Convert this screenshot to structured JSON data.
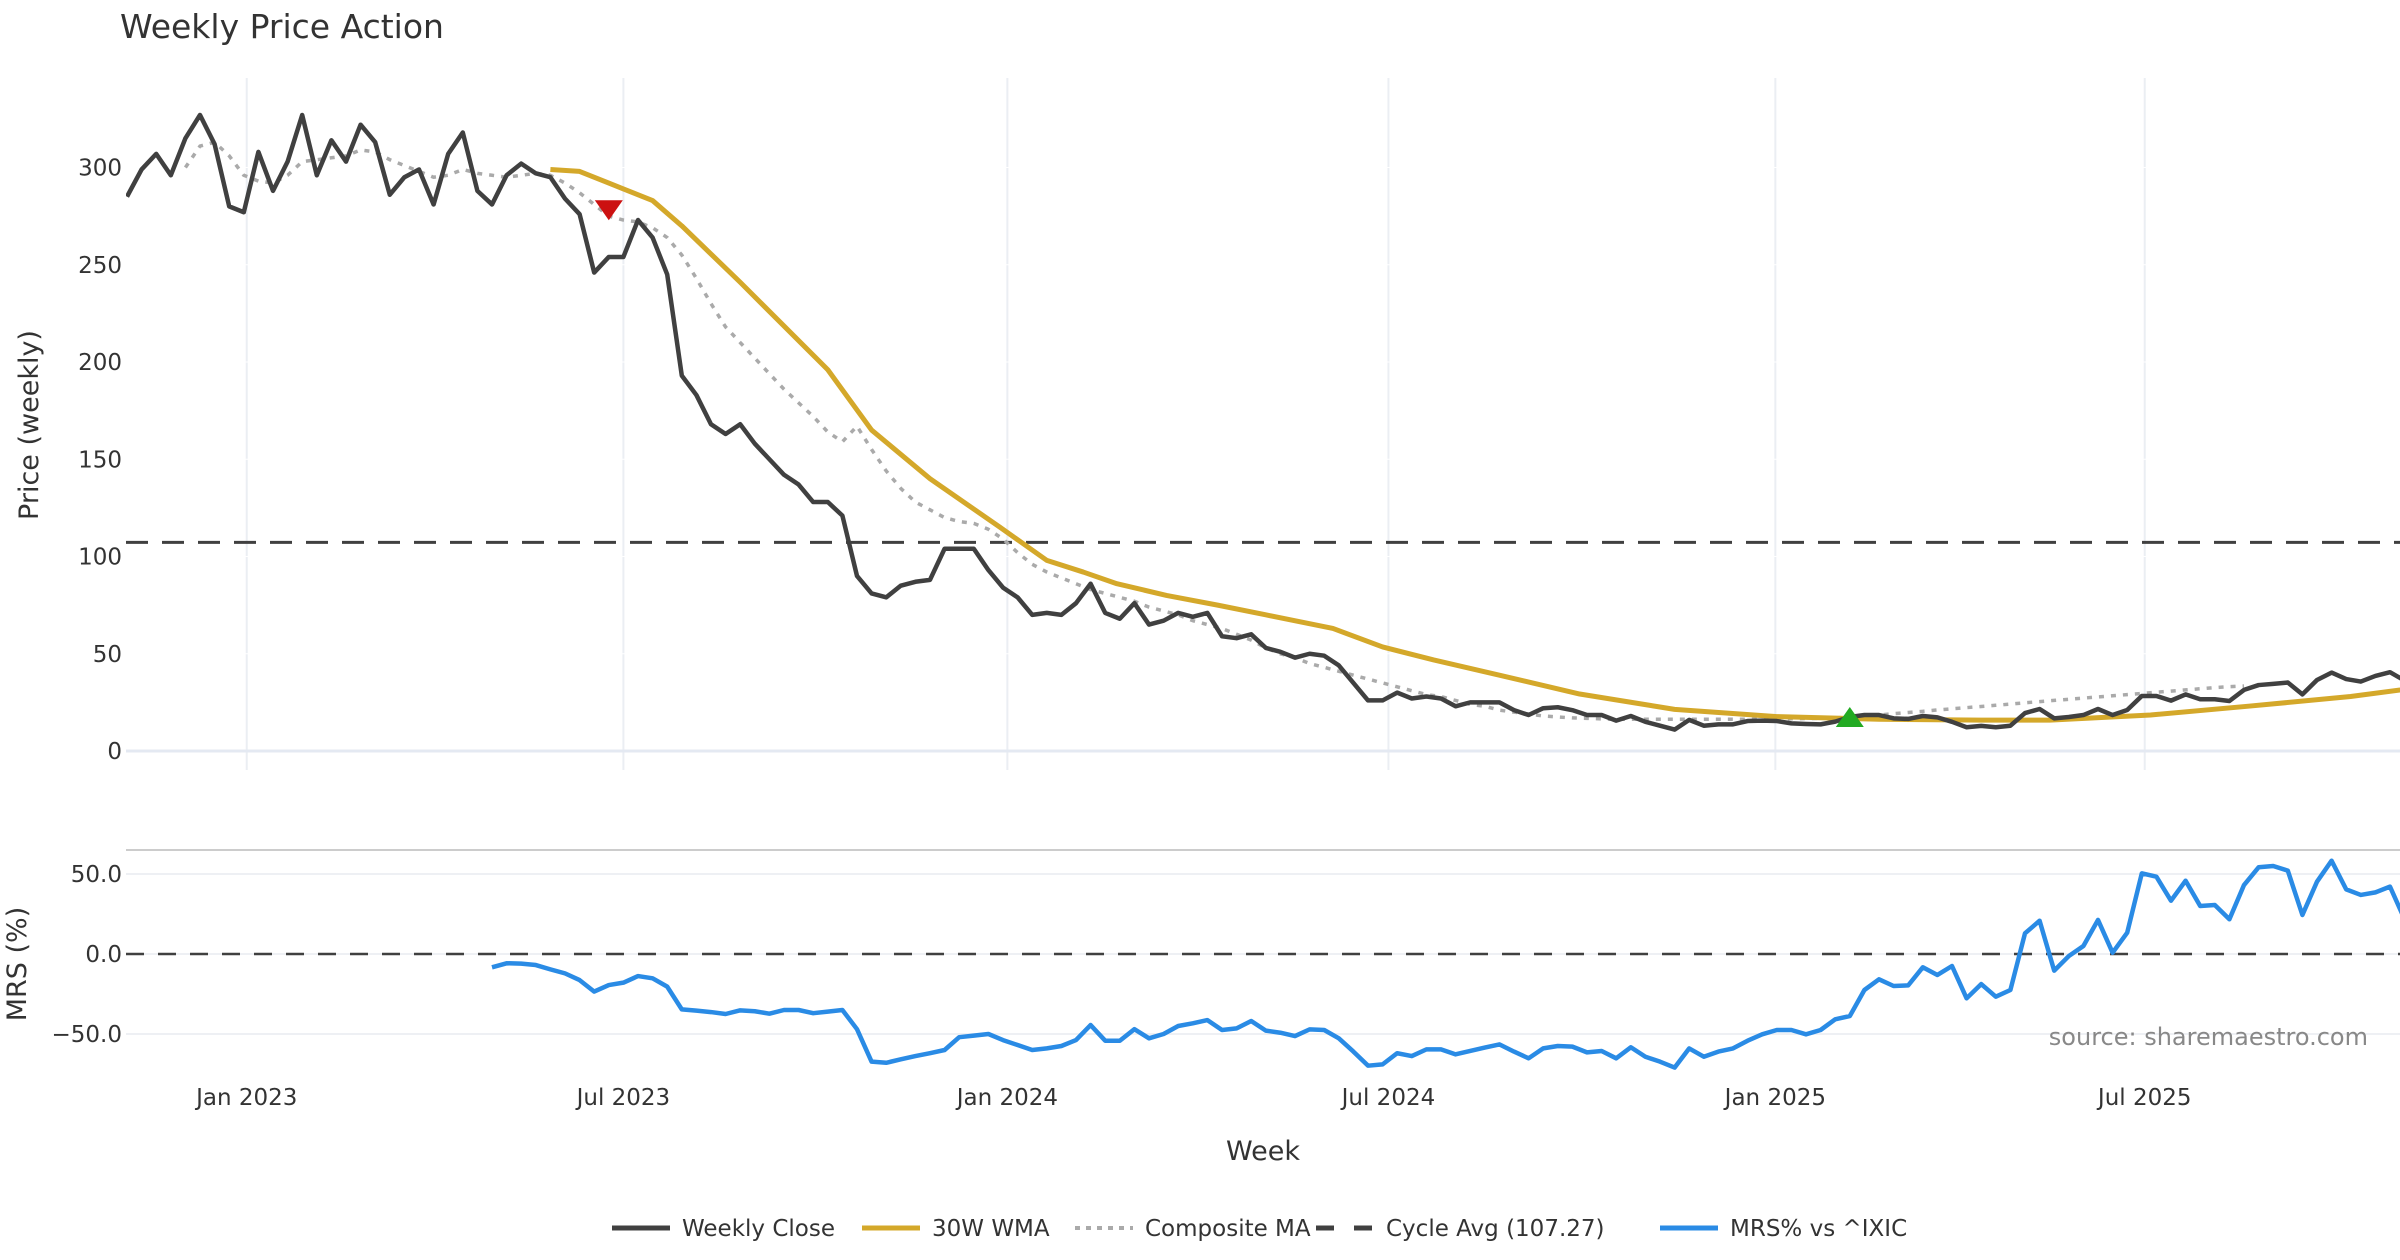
{
  "chart_data": [
    {
      "type": "line",
      "title": "Weekly Price Action",
      "xlabel": "Week",
      "ylabel": "Price (weekly)",
      "ylim": [
        -5,
        345
      ],
      "yticks": [
        0,
        50,
        100,
        150,
        200,
        250,
        300
      ],
      "xticks": [
        {
          "label": "Jan 2023",
          "week": 8.2
        },
        {
          "label": "Jul 2023",
          "week": 34.0
        },
        {
          "label": "Jan 2024",
          "week": 60.3
        },
        {
          "label": "Jul 2024",
          "week": 86.4
        },
        {
          "label": "Jan 2025",
          "week": 112.9
        },
        {
          "label": "Jul 2025",
          "week": 138.2
        }
      ],
      "x_range_weeks": [
        -0.1,
        155.7
      ],
      "grid": true,
      "series": [
        {
          "name": "Weekly Close",
          "color": "#404040",
          "style": "solid",
          "start_week": 0,
          "values": [
            285,
            299,
            307,
            296,
            315,
            327,
            312,
            280,
            277,
            308,
            288,
            303,
            327,
            296,
            314,
            303,
            322,
            313,
            286,
            295,
            299,
            281,
            307,
            318,
            288,
            281,
            296,
            302,
            297,
            295,
            284,
            276,
            246,
            254,
            254,
            273,
            264,
            245,
            193,
            183,
            168,
            163,
            168,
            158,
            150,
            142,
            137,
            128,
            128,
            121,
            90,
            81,
            79,
            85,
            87,
            88,
            104,
            104,
            104,
            93,
            84,
            79,
            70,
            71,
            70,
            76,
            86,
            71,
            68,
            76,
            65,
            67,
            71,
            69,
            71,
            59,
            58,
            60,
            53,
            51,
            48,
            50,
            49,
            44,
            35,
            26,
            26,
            30,
            27,
            28,
            27,
            23,
            25,
            25,
            25,
            21,
            18.5,
            22,
            22.5,
            21,
            18.5,
            18.5,
            15.6,
            18,
            15,
            13,
            11,
            16,
            13,
            13.7,
            13.7,
            15.4,
            15.6,
            15.4,
            14.2,
            13.9,
            13.7,
            15.1,
            17.5,
            18.5,
            18.5,
            16.8,
            16.5,
            18,
            17.3,
            15,
            12.2,
            12.9,
            12.2,
            13,
            19.5,
            21.6,
            16.8,
            17.5,
            18.5,
            21.6,
            18.5,
            21.1,
            28.3,
            28.3,
            25.9,
            29.1,
            26.6,
            26.6,
            25.7,
            31.4,
            33.9,
            34.5,
            35.2,
            29.1,
            36.5,
            40.3,
            37,
            35.7,
            38.6,
            40.5,
            36.2
          ]
        },
        {
          "name": "30W WMA",
          "color": "#D4A82A",
          "style": "solid",
          "points": [
            [
              29,
              299
            ],
            [
              31,
              298
            ],
            [
              33,
              292
            ],
            [
              34,
              289
            ],
            [
              36,
              283
            ],
            [
              38,
              270
            ],
            [
              42,
              241
            ],
            [
              48,
              196
            ],
            [
              51,
              165
            ],
            [
              55,
              140
            ],
            [
              59.8,
              115
            ],
            [
              63,
              98
            ],
            [
              65.5,
              92
            ],
            [
              67.8,
              86
            ],
            [
              71.2,
              80
            ],
            [
              74.7,
              75
            ],
            [
              78,
              70
            ],
            [
              82.6,
              63
            ],
            [
              86,
              53.5
            ],
            [
              89.5,
              46.8
            ],
            [
              94,
              39
            ],
            [
              99.5,
              29.3
            ],
            [
              106,
              21.4
            ],
            [
              113,
              17.7
            ],
            [
              120,
              16.3
            ],
            [
              127,
              15.9
            ],
            [
              131.7,
              15.9
            ],
            [
              138.6,
              18.5
            ],
            [
              145.4,
              23.1
            ],
            [
              152.3,
              28
            ],
            [
              155.7,
              31.4
            ]
          ]
        },
        {
          "name": "Composite MA",
          "color": "#AAAAAA",
          "style": "dotted",
          "start_week": 4,
          "values": [
            300,
            311,
            313,
            306,
            296,
            293,
            292,
            296,
            303,
            304,
            305,
            306,
            309,
            308,
            304,
            301,
            298,
            295,
            296,
            299,
            297,
            296,
            295,
            296,
            297,
            296,
            292,
            287,
            281,
            275,
            273,
            272,
            269,
            264,
            255,
            243,
            230,
            218,
            210,
            202,
            194,
            186,
            179,
            172,
            164,
            159,
            167,
            155,
            144,
            135,
            128,
            124,
            120,
            118,
            117,
            114,
            109,
            102,
            96,
            92,
            89,
            86,
            83,
            81,
            79,
            77,
            74,
            72,
            70,
            67,
            65,
            63,
            60,
            57,
            53,
            50,
            48,
            45,
            43,
            41,
            39,
            37,
            35,
            33,
            31,
            29,
            28,
            26,
            24,
            23,
            21,
            20,
            19,
            18,
            17.5,
            17,
            16.8,
            16.5,
            16.3,
            16.3,
            16.3,
            16.3,
            16.3,
            16.3,
            16.3,
            16.3,
            16.3,
            16.3,
            16.4,
            16.5,
            16.6,
            16.7,
            16.8,
            17,
            17.5,
            18,
            18.5,
            19.2,
            19.8,
            20.4,
            21.1,
            21.7,
            22.3,
            22.9,
            23.5,
            24.1,
            24.8,
            25.4,
            26,
            26.6,
            27.2,
            27.8,
            28.4,
            29,
            29.6,
            30.2,
            30.8,
            31.4,
            32,
            32.6,
            33.1,
            33.4
          ]
        },
        {
          "name": "Cycle Avg (107.27)",
          "color": "#404040",
          "style": "dashed",
          "value": 107.27
        }
      ],
      "markers": [
        {
          "type": "sell",
          "shape": "triangle-down",
          "color": "#CC1111",
          "week": 33,
          "value": 278
        },
        {
          "type": "buy",
          "shape": "triangle-up",
          "color": "#22AA22",
          "week": 118,
          "value": 17.5
        }
      ]
    },
    {
      "type": "line",
      "ylabel": "MRS (%)",
      "ylim": [
        -83,
        65
      ],
      "yticks": [
        50.0,
        0.0,
        -50.0
      ],
      "ytick_labels": [
        "50.0",
        "0.0",
        "−50.0"
      ],
      "grid": true,
      "series": [
        {
          "name": "MRS% vs ^IXIC",
          "color": "#2A8BE5",
          "style": "solid",
          "start_week": 25,
          "values": [
            -8.3,
            -5.8,
            -6,
            -6.9,
            -9.6,
            -12.1,
            -16.3,
            -23.5,
            -19.4,
            -17.9,
            -13.8,
            -15.2,
            -20.4,
            -34.6,
            -35.4,
            -36.3,
            -37.5,
            -35.2,
            -35.8,
            -37.3,
            -35,
            -35,
            -37,
            -36,
            -35,
            -47,
            -67.3,
            -68,
            -65.8,
            -63.8,
            -62,
            -60,
            -52,
            -51,
            -50,
            -53.8,
            -56.9,
            -60,
            -59,
            -57.5,
            -53.8,
            -44.4,
            -54.2,
            -54.2,
            -47,
            -52.7,
            -50,
            -45,
            -43.3,
            -41.3,
            -47.5,
            -46.5,
            -41.9,
            -47.9,
            -49.2,
            -51.3,
            -47.1,
            -47.5,
            -52.7,
            -61,
            -69.8,
            -69,
            -62,
            -63.8,
            -59.6,
            -59.6,
            -62.7,
            -60.6,
            -58.5,
            -56.5,
            -61,
            -65.2,
            -59,
            -57.5,
            -57.9,
            -61.5,
            -60.6,
            -65.2,
            -58.3,
            -64.2,
            -67.3,
            -71,
            -59,
            -64.2,
            -61,
            -59,
            -54.2,
            -50.2,
            -47.5,
            -47.5,
            -50.2,
            -47.5,
            -40.8,
            -38.8,
            -22.5,
            -15.8,
            -20,
            -19.6,
            -8.3,
            -13.1,
            -7.5,
            -27.7,
            -18.8,
            -26.7,
            -22.5,
            12.9,
            20.8,
            -10.4,
            -1.3,
            5,
            21.3,
            0.8,
            13.3,
            50.4,
            48.3,
            33.3,
            45.8,
            30,
            30.6,
            21.7,
            43.1,
            54.2,
            55,
            52.1,
            24.4,
            45.2,
            58.3,
            40.4,
            36.9,
            38.5,
            42.1,
            21.7
          ]
        },
        {
          "name": "Zero line",
          "color": "#404040",
          "style": "dashed",
          "value": 0
        }
      ]
    }
  ],
  "legend": {
    "position": "bottom-center",
    "items": [
      {
        "label": "Weekly Close",
        "color": "#404040",
        "style": "solid"
      },
      {
        "label": "30W WMA",
        "color": "#D4A82A",
        "style": "solid"
      },
      {
        "label": "Composite MA",
        "color": "#AAAAAA",
        "style": "dotted"
      },
      {
        "label": "Cycle Avg (107.27)",
        "color": "#404040",
        "style": "dashed"
      },
      {
        "label": "MRS% vs ^IXIC",
        "color": "#2A8BE5",
        "style": "solid"
      }
    ]
  },
  "annotation": {
    "source": "source: sharemaestro.com"
  }
}
